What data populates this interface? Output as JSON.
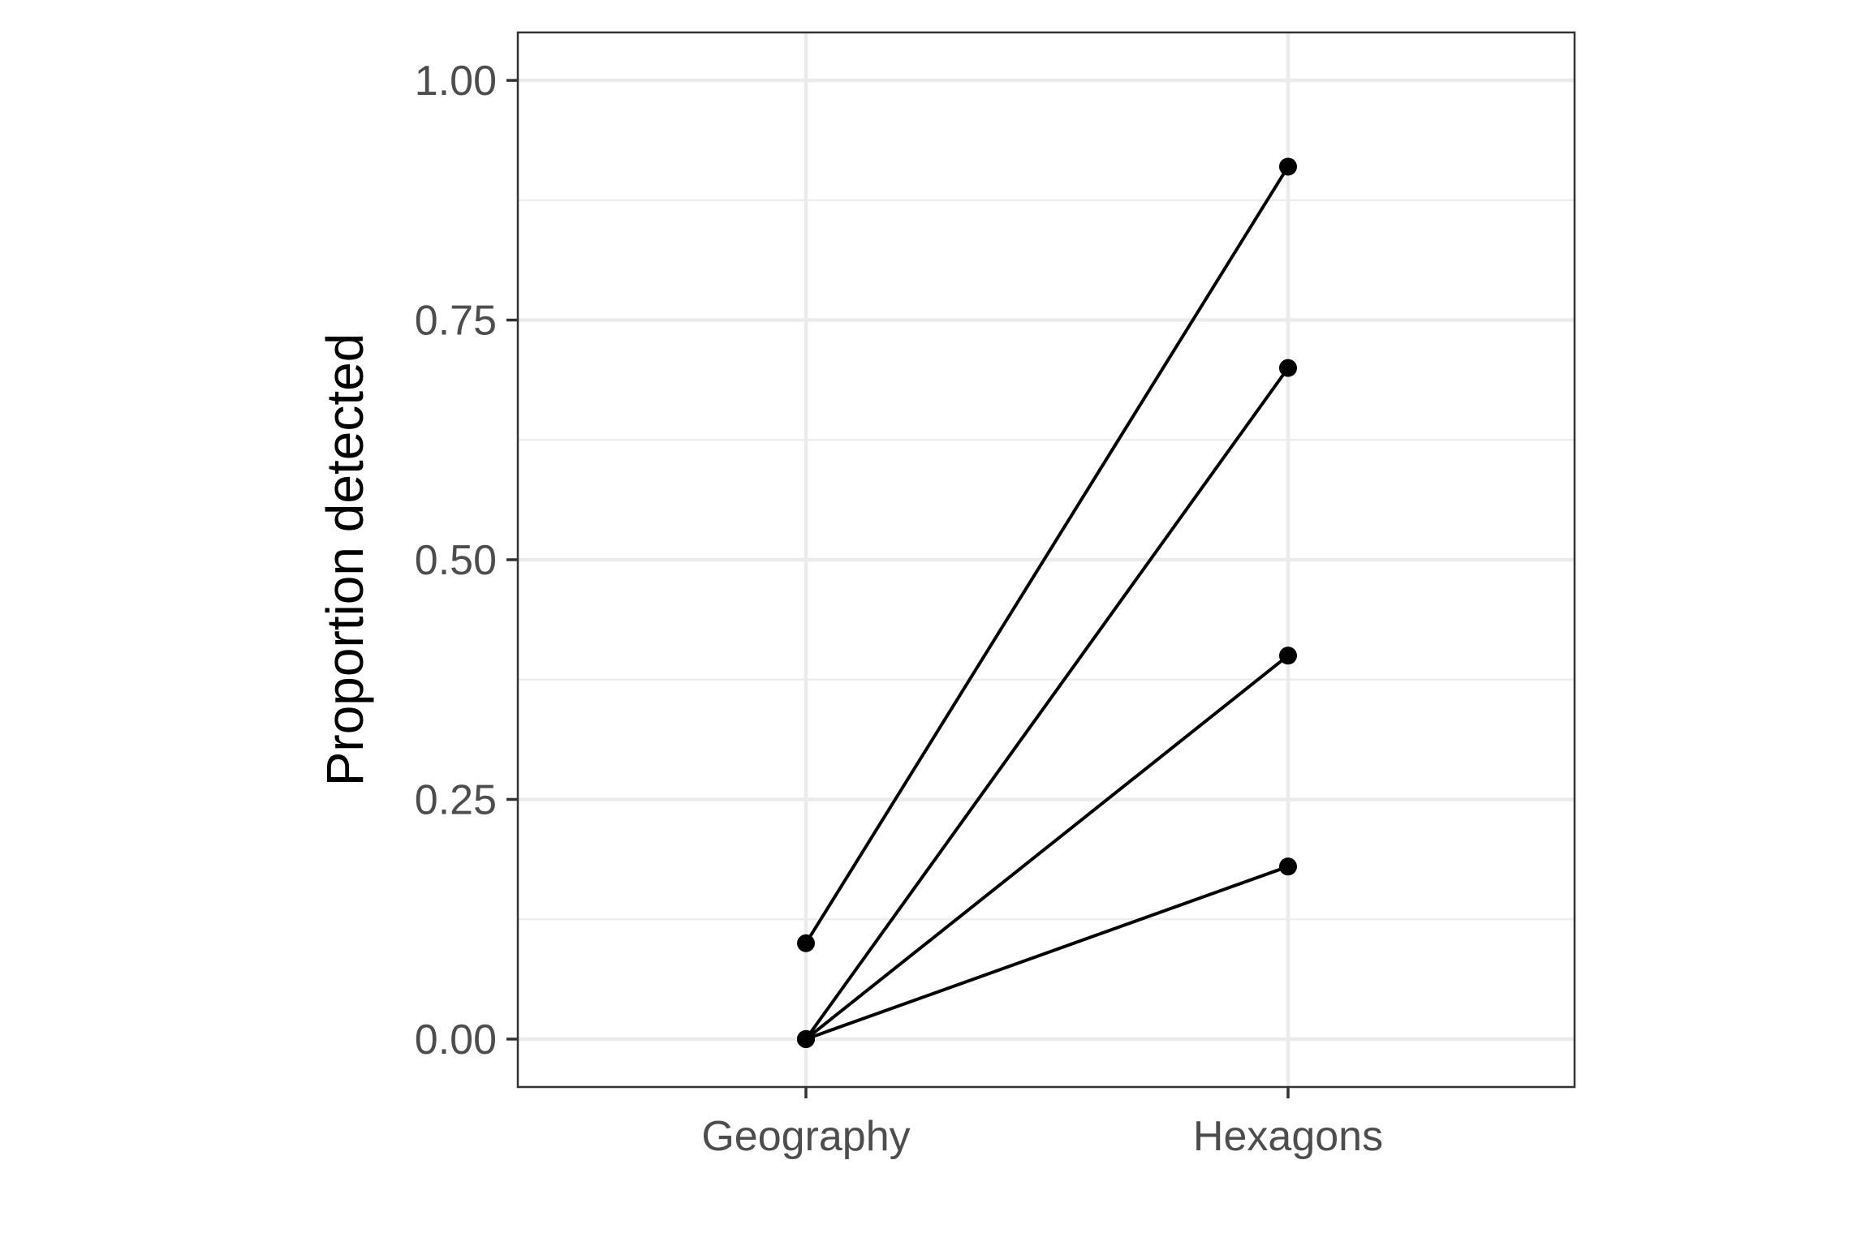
{
  "chart_data": {
    "type": "line",
    "title": "",
    "xlabel": "",
    "ylabel": "Proportion detected",
    "categories": [
      "Geography",
      "Hexagons"
    ],
    "ylim": [
      -0.05,
      1.05
    ],
    "yticks": [
      0.0,
      0.25,
      0.5,
      0.75,
      1.0
    ],
    "ytick_labels": [
      "0.00",
      "0.25",
      "0.50",
      "0.75",
      "1.00"
    ],
    "grid": true,
    "legend": "none",
    "series": [
      {
        "values": [
          0.1,
          0.91
        ]
      },
      {
        "values": [
          0.0,
          0.7
        ]
      },
      {
        "values": [
          0.0,
          0.4
        ]
      },
      {
        "values": [
          0.0,
          0.18
        ]
      }
    ],
    "colors": {
      "line": "#000000",
      "point": "#000000",
      "grid": "#ebebeb",
      "border": "#333333"
    }
  }
}
